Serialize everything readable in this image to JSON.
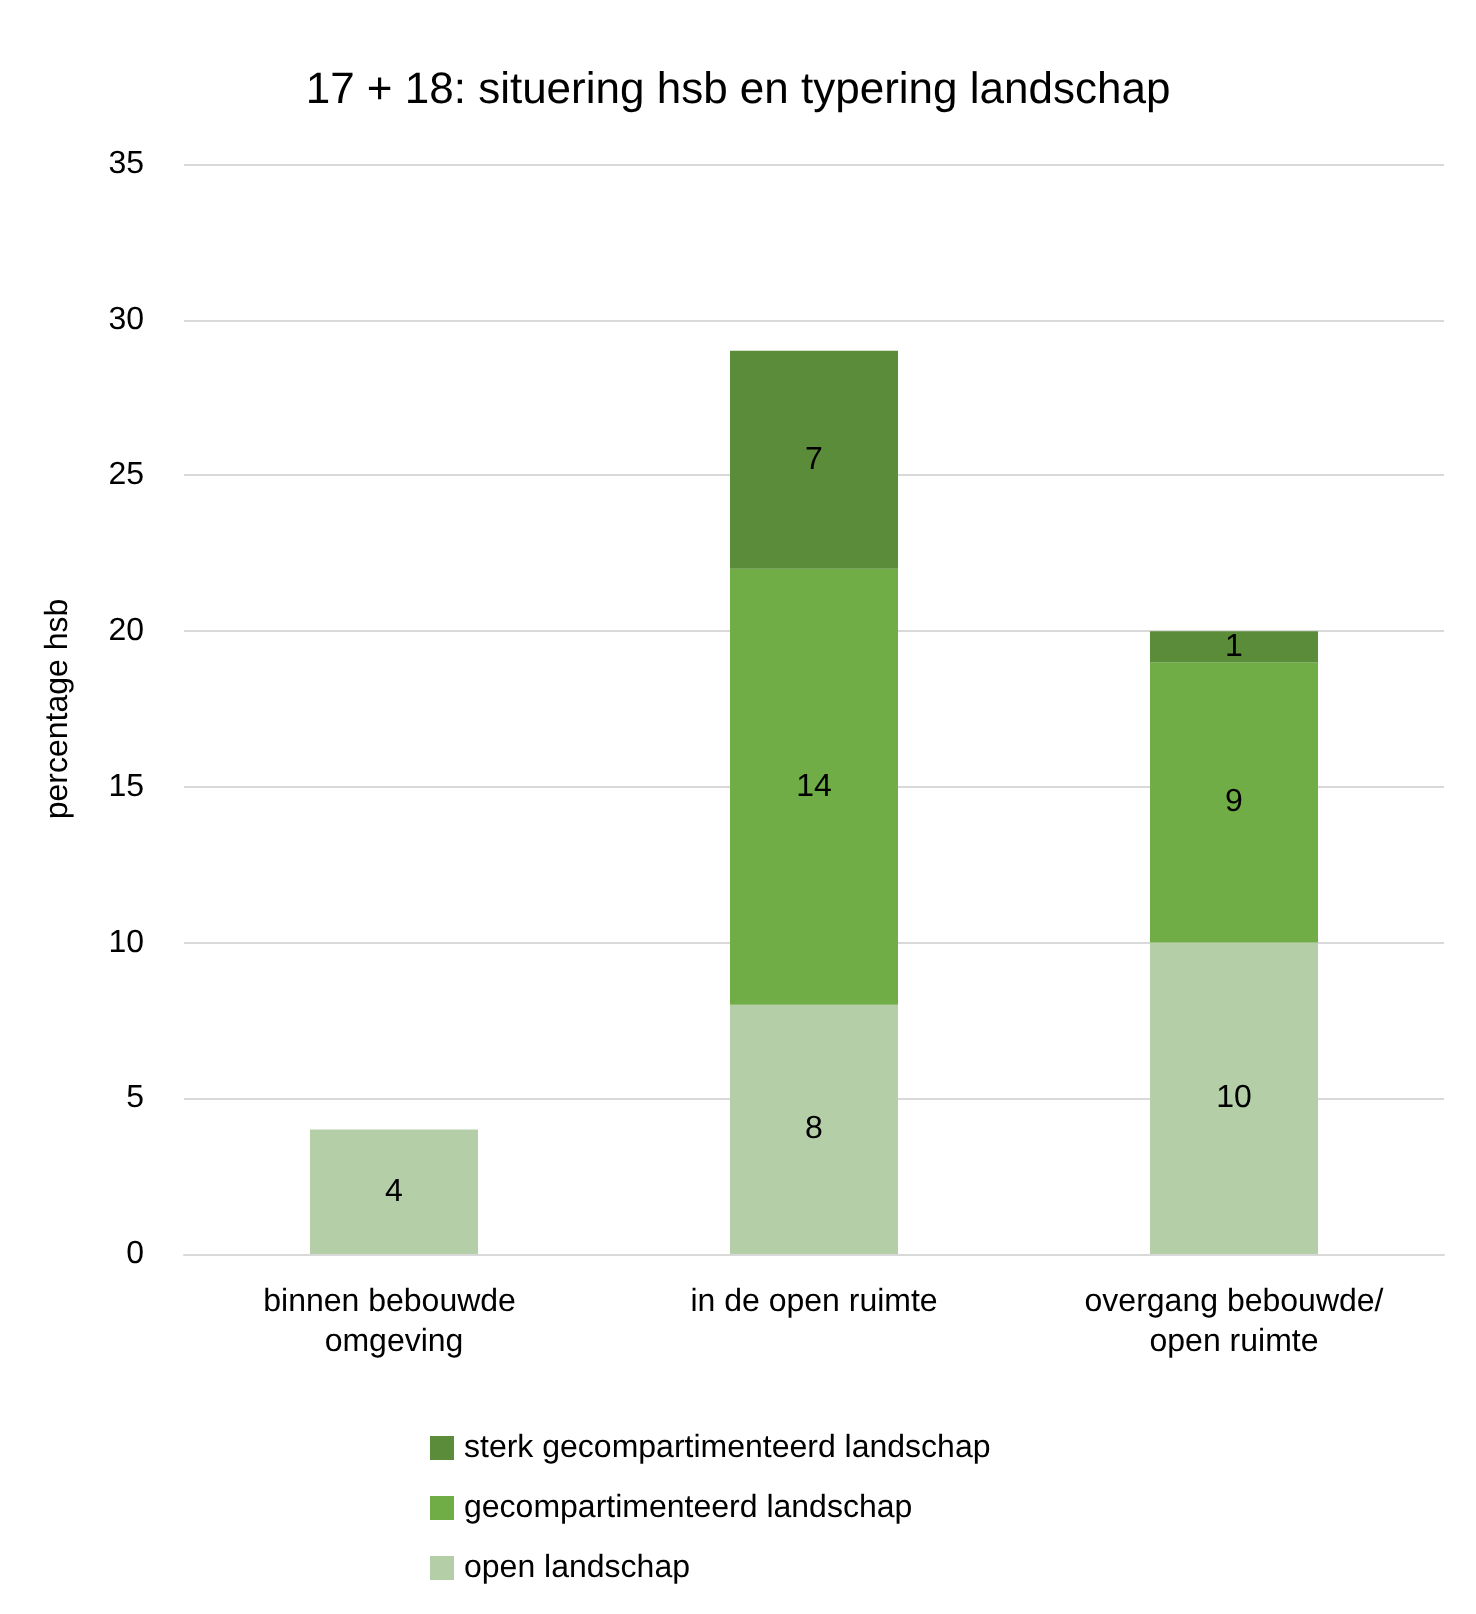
{
  "chart_data": {
    "type": "bar",
    "stacked": true,
    "title": "17 + 18: situering hsb en typering landschap",
    "ylabel": "percentage hsb",
    "categories": [
      "binnen bebouwde omgeving",
      "in de open ruimte",
      "overgang bebouwde/open ruimte"
    ],
    "series": [
      {
        "name": "open landschap",
        "color": "#b4cfa8",
        "values": [
          4,
          8,
          10
        ]
      },
      {
        "name": "gecompartimenteerd landschap",
        "color": "#70ad47",
        "values": [
          null,
          14,
          9
        ]
      },
      {
        "name": "sterk gecompartimenteerd landschap",
        "color": "#5a8c3a",
        "values": [
          null,
          7,
          1
        ]
      }
    ],
    "ylim": [
      0,
      35
    ],
    "yticks": [
      0,
      5,
      10,
      15,
      20,
      25,
      30,
      35
    ],
    "grid": "y",
    "legend": "bottom",
    "data_labels": true
  }
}
